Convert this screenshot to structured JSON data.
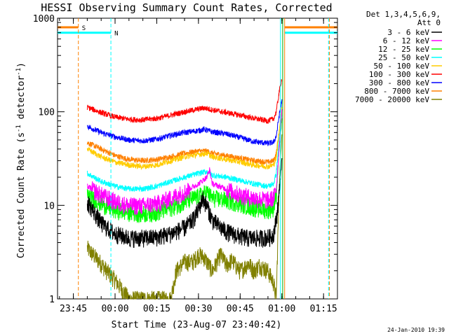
{
  "chart_data": {
    "type": "line",
    "title": "HESSI Observing Summary Count Rates, Corrected",
    "xlabel": "Start Time (23-Aug-07 23:40:42)",
    "ylabel_parts": [
      "Corrected Count Rate (s",
      "-1",
      " detector",
      "-1",
      ")"
    ],
    "xlim_minutes": [
      -20.7,
      80.0
    ],
    "x_axis_origin": "24-Aug-07 00:00",
    "ylim": [
      1,
      1000
    ],
    "y_scale": "log",
    "x_ticks": [
      {
        "min": -15,
        "label": "23:45"
      },
      {
        "min": 0,
        "label": "00:00"
      },
      {
        "min": 15,
        "label": "00:15"
      },
      {
        "min": 30,
        "label": "00:30"
      },
      {
        "min": 45,
        "label": "00:45"
      },
      {
        "min": 60,
        "label": "01:00"
      },
      {
        "min": 75,
        "label": "01:15"
      }
    ],
    "y_ticks": [
      {
        "value": 1,
        "label": "1"
      },
      {
        "value": 10,
        "label": "10"
      },
      {
        "value": 100,
        "label": "100"
      },
      {
        "value": 1000,
        "label": "1000"
      }
    ],
    "legend_title": [
      "Det 1,3,4,5,6,9,",
      "Att 0"
    ],
    "legend_placement": "right",
    "series": [
      {
        "name": "3 - 6 keV",
        "color": "#000000",
        "x": [
          -10,
          -7,
          -5,
          -2,
          0,
          5,
          10,
          15,
          20,
          25,
          28,
          30,
          31.5,
          33,
          35,
          38,
          40,
          42,
          45,
          48,
          52,
          56,
          57,
          58,
          59,
          60
        ],
        "y": [
          11,
          8,
          6.5,
          5.5,
          5,
          4.5,
          4.5,
          4.6,
          5,
          5.8,
          7,
          9,
          12,
          10,
          7,
          5.8,
          5.3,
          5,
          4.7,
          4.5,
          4.5,
          4.6,
          5,
          7,
          13,
          30
        ]
      },
      {
        "name": "6 - 12 keV",
        "color": "#ff00ff",
        "x": [
          -10,
          -5,
          0,
          5,
          10,
          15,
          20,
          25,
          30,
          33,
          34,
          35,
          40,
          45,
          50,
          55,
          57,
          58,
          59,
          60
        ],
        "y": [
          16,
          13,
          11,
          10,
          10,
          10.5,
          12,
          14,
          17,
          20,
          24,
          17,
          15,
          13,
          12,
          11.5,
          12,
          15,
          40,
          100
        ]
      },
      {
        "name": "12 - 25 keV",
        "color": "#00ff00",
        "x": [
          -10,
          -5,
          0,
          5,
          10,
          15,
          20,
          25,
          30,
          33,
          35,
          40,
          45,
          50,
          55,
          57,
          58,
          59,
          60
        ],
        "y": [
          13,
          10.5,
          9,
          8.5,
          8.2,
          8.5,
          9.5,
          11,
          12.5,
          14,
          12,
          11.5,
          10.5,
          9.5,
          9,
          9.5,
          13,
          40,
          80
        ]
      },
      {
        "name": "25 - 50 keV",
        "color": "#00ffff",
        "x": [
          -10,
          -5,
          0,
          5,
          10,
          15,
          20,
          25,
          30,
          33,
          35,
          40,
          45,
          50,
          55,
          57,
          58,
          59,
          60
        ],
        "y": [
          22,
          18,
          16,
          15,
          15,
          16,
          18,
          20,
          22,
          23,
          21,
          20,
          18.5,
          17,
          16,
          17,
          22,
          50,
          90
        ]
      },
      {
        "name": "50 - 100 keV",
        "color": "#ffcc00",
        "x": [
          -10,
          -5,
          0,
          5,
          10,
          15,
          20,
          25,
          30,
          33,
          35,
          40,
          45,
          50,
          55,
          57,
          58,
          59,
          60
        ],
        "y": [
          40,
          33,
          29,
          27,
          26,
          27,
          30,
          33,
          35,
          36,
          33,
          31,
          29,
          27,
          26,
          27,
          32,
          60,
          110
        ]
      },
      {
        "name": "100 - 300 keV",
        "color": "#ff0000",
        "x": [
          -10,
          -5,
          0,
          5,
          10,
          15,
          20,
          25,
          30,
          32,
          35,
          40,
          45,
          50,
          55,
          57,
          58,
          59,
          60
        ],
        "y": [
          112,
          98,
          88,
          83,
          82,
          85,
          92,
          100,
          107,
          110,
          105,
          98,
          92,
          85,
          80,
          84,
          100,
          160,
          230
        ]
      },
      {
        "name": "300 - 800 keV",
        "color": "#0000ff",
        "x": [
          -10,
          -5,
          0,
          5,
          10,
          15,
          20,
          25,
          30,
          32,
          35,
          40,
          45,
          50,
          55,
          57,
          58,
          59,
          60
        ],
        "y": [
          70,
          60,
          54,
          50,
          49,
          51,
          56,
          60,
          63,
          65,
          61,
          58,
          53,
          48,
          46,
          47,
          55,
          90,
          130
        ]
      },
      {
        "name": "800 - 7000 keV",
        "color": "#ff8000",
        "x": [
          -10,
          -5,
          0,
          5,
          10,
          15,
          20,
          25,
          30,
          33,
          35,
          40,
          45,
          50,
          55,
          57,
          58,
          59,
          60
        ],
        "y": [
          47,
          40,
          34,
          31,
          30,
          31,
          33,
          36,
          38,
          38,
          36,
          34,
          32,
          30,
          29,
          30,
          36,
          60,
          105
        ]
      },
      {
        "name": "7000 - 20000 keV",
        "color": "#808000",
        "x": [
          -10,
          -8,
          -5,
          -3,
          0,
          5,
          10,
          15,
          20,
          22,
          25,
          28,
          30,
          32,
          35,
          38,
          40,
          42,
          45,
          48,
          50,
          52,
          55,
          57,
          58,
          59,
          60
        ],
        "y": [
          3.5,
          3,
          2.4,
          2,
          1.6,
          1,
          1,
          1,
          1,
          2,
          2.5,
          2.5,
          3,
          2.8,
          2,
          3,
          2.3,
          2.6,
          2,
          2.4,
          2,
          2.3,
          2,
          1.5,
          1,
          15,
          60
        ]
      }
    ],
    "flag_bars": [
      {
        "label": "S",
        "color": "#ff8000",
        "segments": [
          [
            -20.7,
            -13.2
          ],
          [
            61.0,
            80.0
          ]
        ],
        "level": 800
      },
      {
        "label": "N",
        "color": "#00ffff",
        "segments": [
          [
            -20.7,
            -1.5
          ],
          [
            61.0,
            80.0
          ]
        ],
        "level": 700
      }
    ],
    "vertical_markers": [
      {
        "min": -13.2,
        "color": "#ff8000",
        "style": "dashed"
      },
      {
        "min": -1.5,
        "color": "#00ffff",
        "style": "dashed"
      },
      {
        "min": 59.5,
        "color": "#00ffff",
        "style": "solid"
      },
      {
        "min": 60.3,
        "color": "#00aa00",
        "style": "solid"
      },
      {
        "min": 61.0,
        "color": "#ff8000",
        "style": "solid"
      },
      {
        "min": 76.8,
        "color": "#00ffff",
        "style": "dashed"
      },
      {
        "min": 77.1,
        "color": "#ff8000",
        "style": "dashed"
      }
    ]
  },
  "footer_date": "24-Jan-2010 19:39"
}
